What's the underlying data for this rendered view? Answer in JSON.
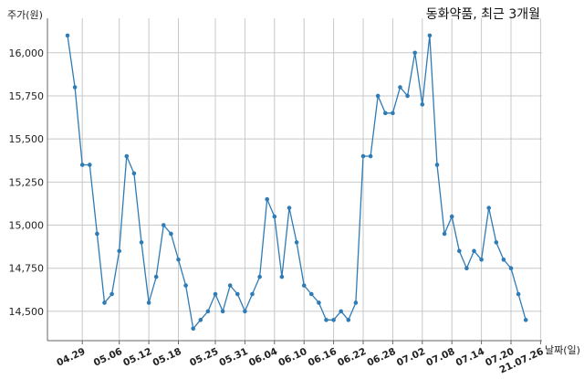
{
  "chart_data": {
    "type": "line",
    "title": "동화약품, 최근 3개월",
    "xlabel": "날짜(일)",
    "ylabel": "주가(원)",
    "ylim": [
      14330,
      16200
    ],
    "yticks": [
      14500,
      14750,
      15000,
      15250,
      15500,
      15750,
      16000
    ],
    "ytick_labels": [
      "14,500",
      "14,750",
      "15,000",
      "15,250",
      "15,500",
      "15,750",
      "16,000"
    ],
    "xtick_labels": [
      "04.29",
      "05.06",
      "05.12",
      "05.18",
      "05.25",
      "05.31",
      "06.04",
      "06.10",
      "06.16",
      "06.22",
      "06.28",
      "07.02",
      "07.08",
      "07.14",
      "07.20",
      "21.07.26"
    ],
    "xtick_index": [
      2,
      7,
      11,
      15,
      20,
      24,
      28,
      32,
      36,
      40,
      44,
      48,
      52,
      56,
      60,
      64
    ],
    "grid": true,
    "series": [
      {
        "color": "#2f7bb5",
        "values": [
          16100,
          15800,
          15350,
          15350,
          14950,
          14550,
          14600,
          14850,
          15400,
          15300,
          14900,
          14550,
          14700,
          15000,
          14950,
          14800,
          14650,
          14400,
          14450,
          14500,
          14600,
          14500,
          14650,
          14600,
          14500,
          14600,
          14700,
          15150,
          15050,
          14700,
          15100,
          14900,
          14650,
          14600,
          14550,
          14450,
          14450,
          14500,
          14450,
          14550,
          15400,
          15400,
          15750,
          15650,
          15650,
          15800,
          15750,
          16000,
          15700,
          16100,
          15350,
          14950,
          15050,
          14850,
          14750,
          14850,
          14800,
          15100,
          14900,
          14800,
          14750,
          14600,
          14450
        ]
      }
    ]
  }
}
